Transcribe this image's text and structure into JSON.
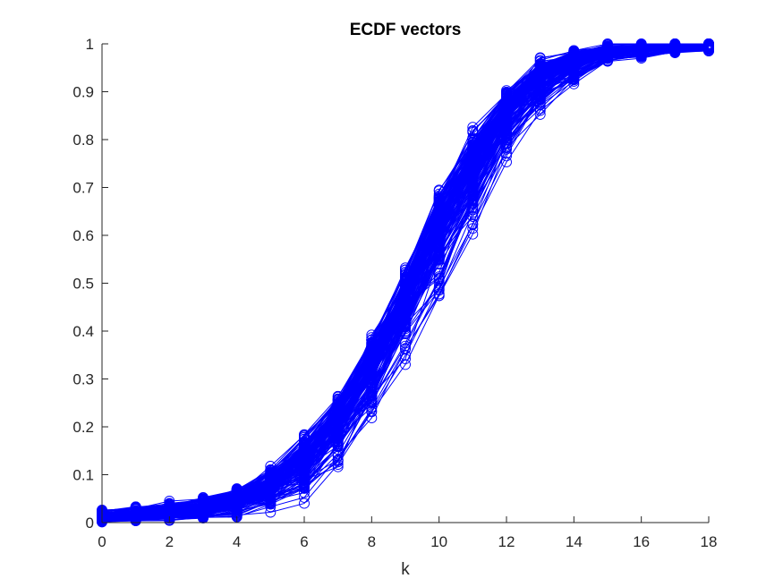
{
  "chart_data": {
    "type": "line",
    "title": "ECDF vectors",
    "xlabel": "k",
    "ylabel": "",
    "xlim": [
      0,
      18
    ],
    "ylim": [
      0,
      1
    ],
    "xticks": [
      "0",
      "2",
      "4",
      "6",
      "8",
      "10",
      "12",
      "14",
      "16",
      "18"
    ],
    "yticks": [
      "0",
      "0.1",
      "0.2",
      "0.3",
      "0.4",
      "0.5",
      "0.6",
      "0.7",
      "0.8",
      "0.9",
      "1"
    ],
    "x": [
      0,
      1,
      2,
      3,
      4,
      5,
      6,
      7,
      8,
      9,
      10,
      11,
      12,
      13,
      14,
      15,
      16,
      17,
      18
    ],
    "marker": "circle",
    "color": "#0000ff",
    "num_series": 160,
    "series_envelope": {
      "lower": [
        0.0,
        0.0,
        0.0,
        0.0,
        0.005,
        0.02,
        0.04,
        0.1,
        0.19,
        0.33,
        0.45,
        0.58,
        0.74,
        0.85,
        0.905,
        0.96,
        0.97,
        0.98,
        0.985
      ],
      "median": [
        0.008,
        0.013,
        0.02,
        0.03,
        0.045,
        0.08,
        0.13,
        0.22,
        0.33,
        0.47,
        0.62,
        0.75,
        0.86,
        0.93,
        0.965,
        0.985,
        0.99,
        0.995,
        0.995
      ],
      "upper": [
        0.03,
        0.04,
        0.045,
        0.055,
        0.08,
        0.125,
        0.195,
        0.28,
        0.405,
        0.55,
        0.725,
        0.835,
        0.915,
        0.98,
        0.995,
        1.0,
        1.0,
        1.0,
        1.0
      ]
    },
    "grid": false,
    "legend": "none"
  }
}
